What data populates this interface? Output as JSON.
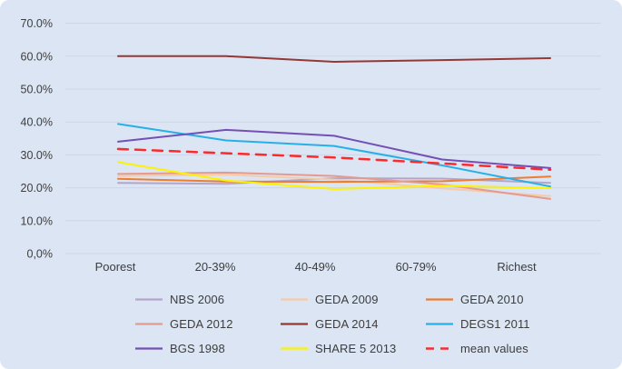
{
  "chart_data": {
    "type": "line",
    "title": "",
    "xlabel": "",
    "ylabel": "",
    "categories": [
      "Poorest",
      "20-39%",
      "40-49%",
      "60-79%",
      "Richest"
    ],
    "y_axis": {
      "min": 0,
      "max": 70,
      "tick_step": 10,
      "tick_labels": [
        "70.0%",
        "60.0%",
        "50.0%",
        "40.0%",
        "30.0%",
        "20.0%",
        "10.0%",
        "0,0%"
      ],
      "unit": "percent"
    },
    "grid": true,
    "legend_position": "bottom",
    "series": [
      {
        "name": "NBS 2006",
        "color": "#b3a6c9",
        "dash": false,
        "values": [
          21.5,
          21.2,
          22.9,
          22.8,
          21.5
        ]
      },
      {
        "name": "GEDA 2009",
        "color": "#f6cba8",
        "dash": false,
        "values": [
          23.6,
          24.0,
          22.5,
          19.8,
          17.5
        ]
      },
      {
        "name": "GEDA 2010",
        "color": "#ed7d31",
        "dash": false,
        "values": [
          22.7,
          21.9,
          21.8,
          22.0,
          23.4
        ]
      },
      {
        "name": "GEDA 2012",
        "color": "#e59a90",
        "dash": false,
        "values": [
          24.2,
          24.6,
          23.6,
          21.0,
          16.6
        ]
      },
      {
        "name": "GEDA 2014",
        "color": "#953735",
        "dash": false,
        "values": [
          60.0,
          60.0,
          58.3,
          58.8,
          59.4
        ]
      },
      {
        "name": "DEGS1 2011",
        "color": "#27b0e6",
        "dash": false,
        "values": [
          39.4,
          34.4,
          32.7,
          26.8,
          20.4
        ]
      },
      {
        "name": "BGS 1998",
        "color": "#7450b5",
        "dash": false,
        "values": [
          34.0,
          37.6,
          35.8,
          28.6,
          26.0
        ]
      },
      {
        "name": "SHARE 5 2013",
        "color": "#fdf200",
        "dash": false,
        "values": [
          27.8,
          22.2,
          19.6,
          20.6,
          19.9
        ]
      },
      {
        "name": "mean values",
        "color": "#fb2b2b",
        "dash": true,
        "values": [
          31.8,
          30.5,
          29.2,
          27.4,
          25.5
        ]
      }
    ]
  },
  "colors": {
    "background": "#dbe5f4",
    "gridline": "#ccd6e6",
    "axis_text": "#3d3d3d"
  }
}
